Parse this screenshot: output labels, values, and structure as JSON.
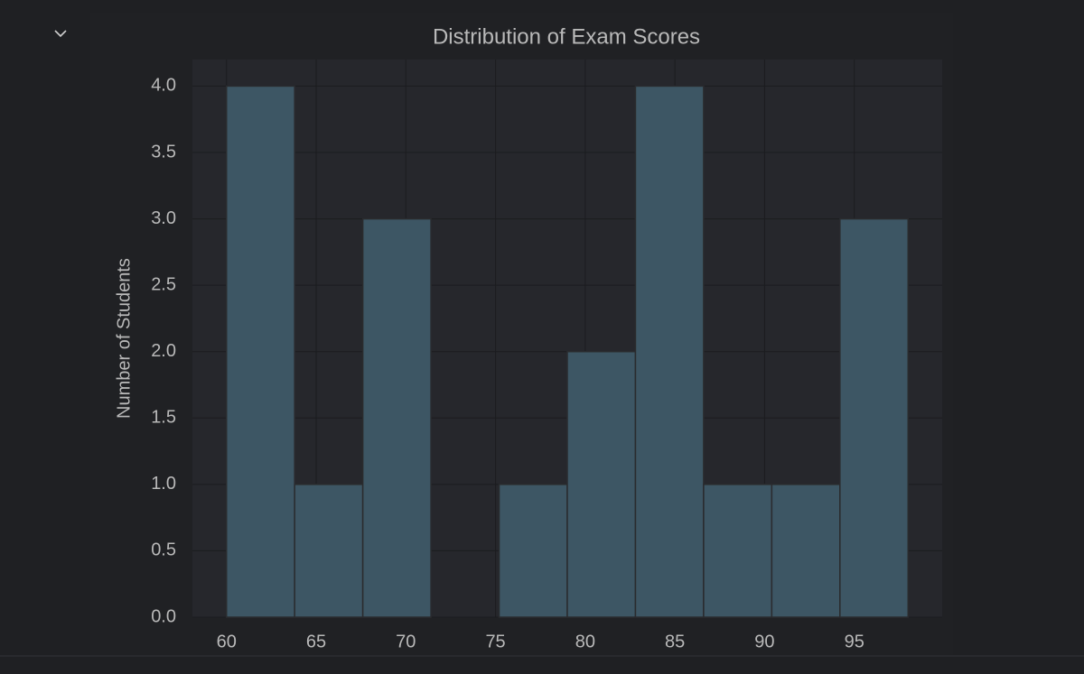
{
  "chart_data": {
    "type": "histogram",
    "title": "Distribution of Exam Scores",
    "ylabel": "Number of Students",
    "bins": [
      60,
      63.8,
      67.6,
      71.4,
      75.2,
      79,
      82.8,
      86.6,
      90.4,
      94.2,
      98
    ],
    "counts": [
      4,
      1,
      3,
      0,
      1,
      2,
      4,
      1,
      1,
      3
    ],
    "color": "#3d5664",
    "grid": true,
    "xlim": [
      58.1,
      99.9
    ],
    "xticks": [
      60,
      65,
      70,
      75,
      80,
      85,
      90,
      95
    ],
    "ylim": [
      0,
      4.2
    ],
    "yticks": [
      {
        "value": 0,
        "label": "0.0"
      },
      0.5,
      {
        "value": 1,
        "label": "1.0"
      },
      1.5,
      {
        "value": 2,
        "label": "2.0"
      },
      2.5,
      {
        "value": 3,
        "label": "3.0"
      },
      3.5,
      {
        "value": 4,
        "label": "4.0"
      }
    ]
  }
}
